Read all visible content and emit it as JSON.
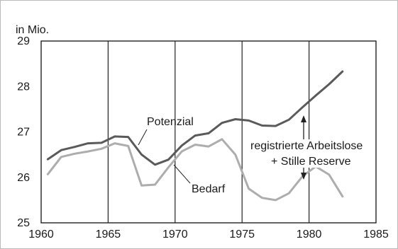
{
  "chart_data": {
    "type": "line",
    "unit_label": "in Mio.",
    "xlim": [
      1960,
      1985
    ],
    "ylim": [
      25,
      29
    ],
    "xticks": [
      1960,
      1965,
      1970,
      1975,
      1980,
      1985
    ],
    "yticks": [
      25,
      26,
      27,
      28,
      29
    ],
    "grid": "vertical",
    "series": [
      {
        "name": "Potenzial",
        "color": "#5a5a5a",
        "points": [
          [
            1960.5,
            26.4
          ],
          [
            1961.5,
            26.6
          ],
          [
            1962.5,
            26.67
          ],
          [
            1963.5,
            26.75
          ],
          [
            1964.5,
            26.76
          ],
          [
            1965.5,
            26.9
          ],
          [
            1966.5,
            26.89
          ],
          [
            1967.5,
            26.5
          ],
          [
            1968.5,
            26.28
          ],
          [
            1969.5,
            26.39
          ],
          [
            1970.5,
            26.7
          ],
          [
            1971.5,
            26.92
          ],
          [
            1972.5,
            26.97
          ],
          [
            1973.5,
            27.2
          ],
          [
            1974.5,
            27.28
          ],
          [
            1975.5,
            27.25
          ],
          [
            1976.5,
            27.14
          ],
          [
            1977.5,
            27.13
          ],
          [
            1978.5,
            27.27
          ],
          [
            1979.5,
            27.54
          ],
          [
            1980.5,
            27.8
          ],
          [
            1981.5,
            28.05
          ],
          [
            1982.5,
            28.33
          ]
        ]
      },
      {
        "name": "Bedarf",
        "color": "#adadad",
        "points": [
          [
            1960.5,
            26.07
          ],
          [
            1961.5,
            26.45
          ],
          [
            1962.5,
            26.52
          ],
          [
            1963.5,
            26.57
          ],
          [
            1964.5,
            26.63
          ],
          [
            1965.5,
            26.75
          ],
          [
            1966.5,
            26.69
          ],
          [
            1967.5,
            25.82
          ],
          [
            1968.5,
            25.84
          ],
          [
            1969.5,
            26.22
          ],
          [
            1970.5,
            26.57
          ],
          [
            1971.5,
            26.72
          ],
          [
            1972.5,
            26.68
          ],
          [
            1973.5,
            26.84
          ],
          [
            1974.5,
            26.5
          ],
          [
            1975.5,
            25.75
          ],
          [
            1976.5,
            25.55
          ],
          [
            1977.5,
            25.5
          ],
          [
            1978.5,
            25.65
          ],
          [
            1979.5,
            26.02
          ],
          [
            1980.5,
            26.24
          ],
          [
            1981.5,
            26.06
          ],
          [
            1982.5,
            25.58
          ]
        ]
      }
    ],
    "annotations": {
      "potenzial_label": "Potenzial",
      "bedarf_label": "Bedarf",
      "gap_label_line1": "registrierte Arbeitslose",
      "gap_label_line2": "+ Stille Reserve"
    }
  }
}
